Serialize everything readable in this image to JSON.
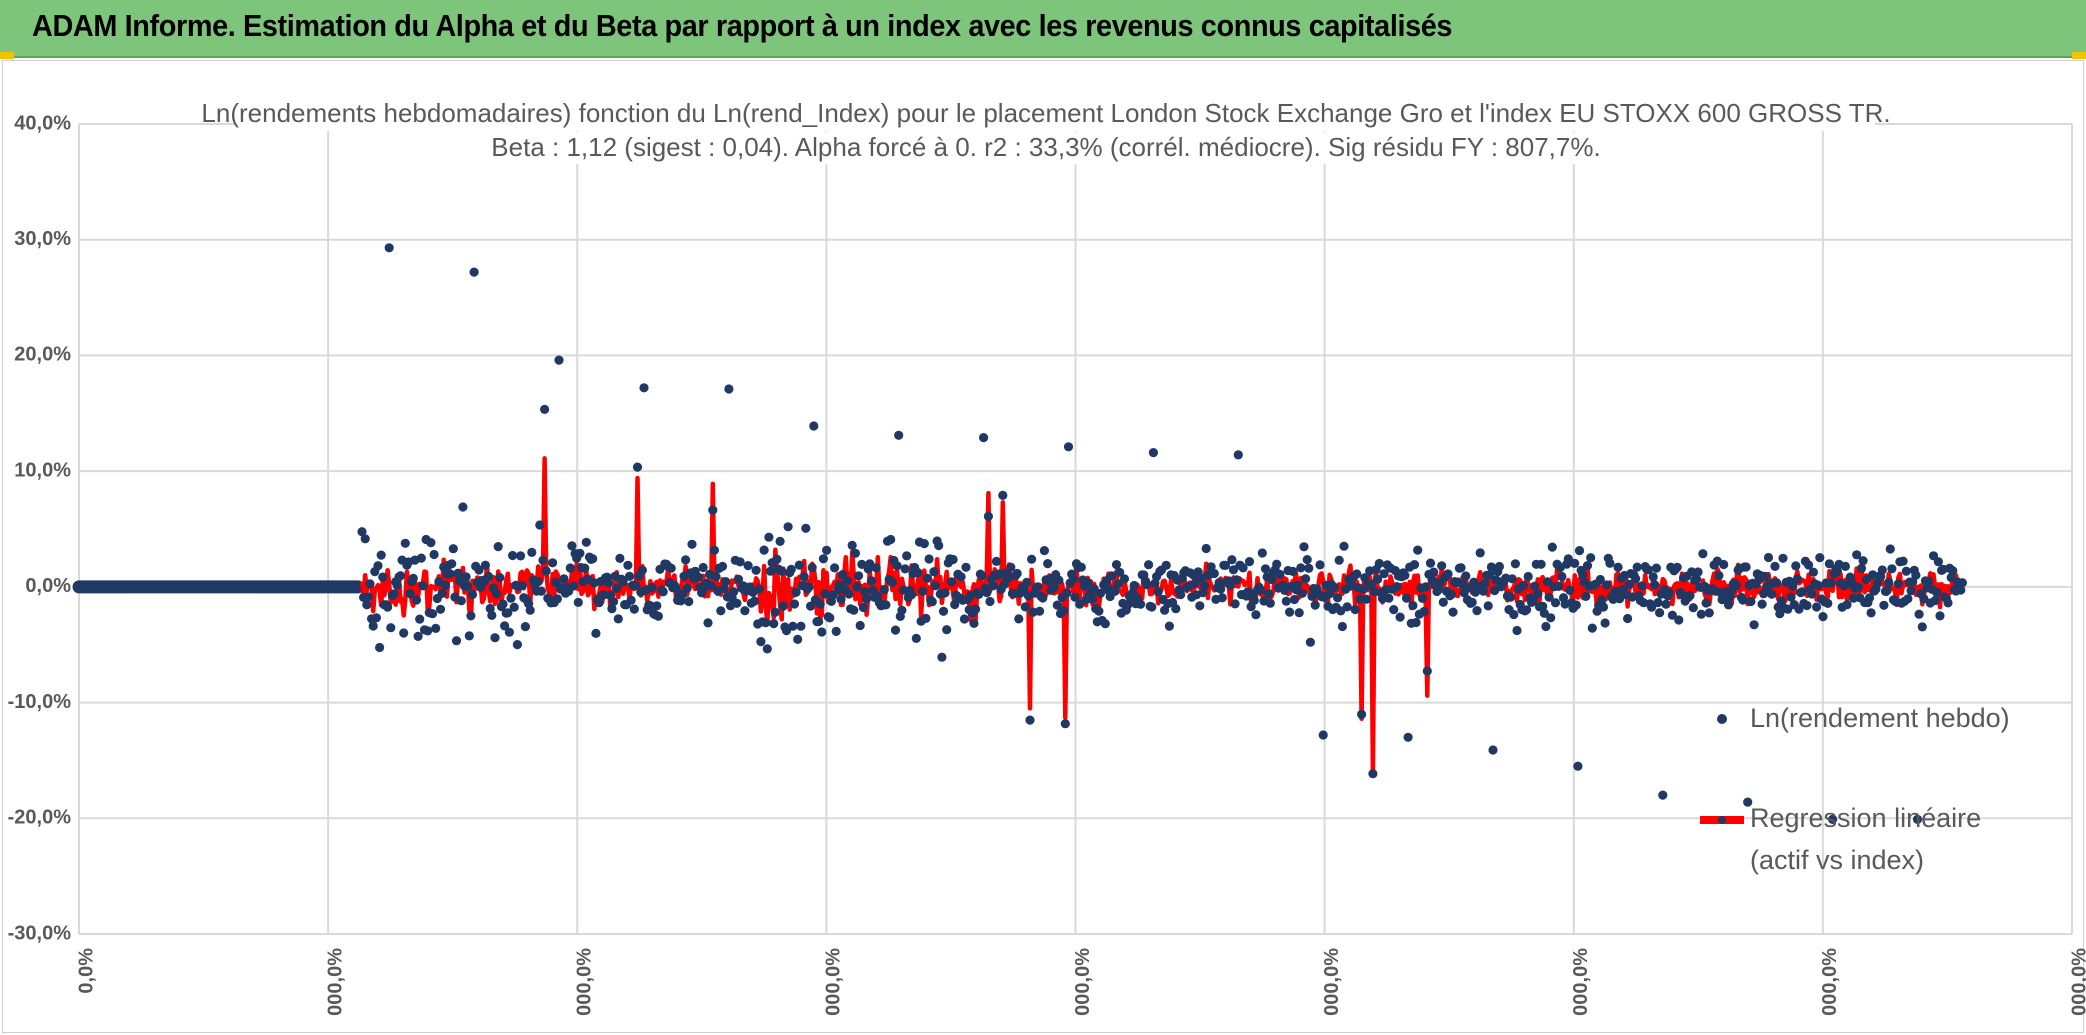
{
  "header": {
    "title": "ADAM Informe. Estimation du Alpha et du Beta par rapport à un index avec les revenus connus capitalisés"
  },
  "colors": {
    "banner": "#7dc57a",
    "points": "#203864",
    "regression": "#ff0000",
    "grid": "#d9d9d9",
    "text": "#595959"
  },
  "chart_data": {
    "type": "scatter",
    "title_line1": "Ln(rendements hebdomadaires) fonction du Ln(rend_Index) pour le placement London Stock Exchange Gro et l'index EU STOXX 600 GROSS TR.",
    "title_line2": "Beta : 1,12 (sigest : 0,04). Alpha forcé à 0. r2 : 33,3% (corrél. médiocre). Sig résidu FY : 807,7%.",
    "y_ticks": [
      "40,0%",
      "30,0%",
      "20,0%",
      "10,0%",
      "0,0%",
      "-10,0%",
      "-20,0%",
      "-30,0%"
    ],
    "x_ticks": [
      "0,0%",
      "000,0%",
      "000,0%",
      "000,0%",
      "000,0%",
      "000,0%",
      "000,0%",
      "000,0%",
      "000,0%"
    ],
    "ylim": [
      -0.3,
      0.4
    ],
    "grid": true,
    "legend_position": "right",
    "series": [
      {
        "name": "Ln(rendement hebdo)",
        "marker": "circle",
        "color": "#203864"
      },
      {
        "name_line1": "Regression linéaire",
        "name_line2": "(actif vs index)",
        "marker": "line",
        "color": "#ff0000"
      }
    ],
    "zero_run_fraction": 0.14,
    "data_start_fraction": 0.142,
    "data_end_fraction": 0.945,
    "observation_count": 1000,
    "notable_points_y": [
      0.293,
      0.272,
      0.196,
      0.172,
      0.171,
      0.139,
      0.131,
      0.129,
      0.121,
      0.116,
      0.114,
      -0.128,
      -0.13,
      -0.141,
      -0.155,
      -0.18,
      -0.186,
      -0.201,
      -0.201
    ],
    "notable_regression_y": [
      0.111,
      0.094,
      0.089,
      0.081,
      0.073,
      -0.105,
      -0.113,
      -0.114,
      -0.162,
      -0.094
    ]
  },
  "legend": {
    "hebdo": "Ln(rendement hebdo)",
    "reg_line1": "Regression linéaire",
    "reg_line2": "(actif vs index)"
  }
}
